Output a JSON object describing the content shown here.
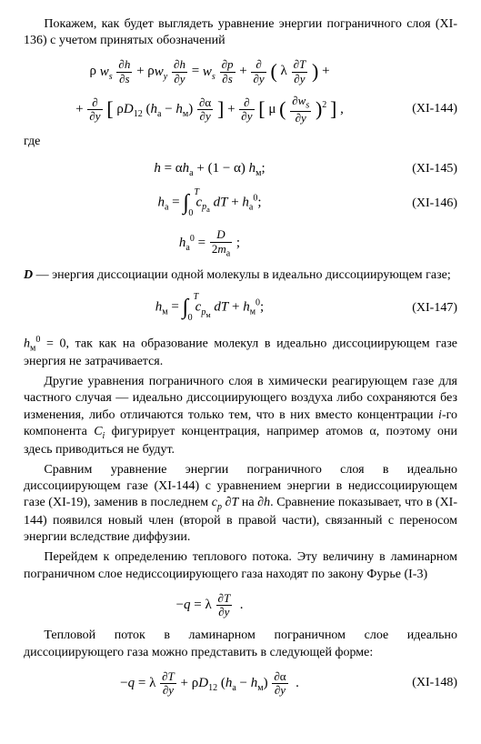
{
  "intro": {
    "p1": "Покажем, как будет выглядеть уравнение энергии пограничного слоя (XI-136) с учетом принятых обозначений"
  },
  "eq144": {
    "line1_html": "ρ <span class='it'>w<span class='sub'>s</span></span> <span class='frac'><span class='num'>∂<span class='it'>h</span></span><span class='den'>∂<span class='it'>s</span></span></span> + ρ<span class='it'>w<span class='sub'>y</span></span> <span class='frac'><span class='num'>∂<span class='it'>h</span></span><span class='den'>∂<span class='it'>y</span></span></span> = <span class='it'>w<span class='sub'>s</span></span> <span class='frac'><span class='num'>∂<span class='it'>p</span></span><span class='den'>∂<span class='it'>s</span></span></span> + <span class='frac'><span class='num'>∂</span><span class='den'>∂<span class='it'>y</span></span></span> <span class='big'>(</span> λ <span class='frac'><span class='num'>∂<span class='it'>T</span></span><span class='den'>∂<span class='it'>y</span></span></span> <span class='big'>)</span> +",
    "line2_html": "+ <span class='frac'><span class='num'>∂</span><span class='den'>∂<span class='it'>y</span></span></span> <span class='big'>[</span> ρ<span class='it'>D</span><span class='sub'>12</span> (<span class='it'>h</span><span class='sub'>а</span> − <span class='it'>h</span><span class='sub'>м</span>) <span class='frac'><span class='num'>∂α</span><span class='den'>∂<span class='it'>y</span></span></span> <span class='big'>]</span> + <span class='frac'><span class='num'>∂</span><span class='den'>∂<span class='it'>y</span></span></span> <span class='big'>[</span> μ <span class='big'>(</span> <span class='frac'><span class='num'>∂<span class='it'>w<span class=\"sub\">s</span></span></span><span class='den'>∂<span class='it'>y</span></span></span> <span class='big'>)</span><span class='sup'>2</span> <span class='big'>]</span> ,",
    "num": "(XI-144)"
  },
  "where_label": "где",
  "eq145": {
    "html": "<span class='it'>h</span> = α<span class='it'>h</span><span class='sub'>а</span> + (1 − α) <span class='it'>h</span><span class='sub'>м</span>;",
    "num": "(XI-145)"
  },
  "eq146": {
    "html": "<span class='it'>h</span><span class='sub'>а</span> = <span class='intwrap'><span class='int-top'><span class='it'>T</span></span><span class='intsym'>∫</span><span class='int-bot'>0</span></span> &nbsp;<span class='it'>c</span><span class='sub'><span class='it'>p</span><sub>а</sub></span> <span class='it'>dT</span> + <span class='it'>h</span><span class='sub'>а</span><span class='sup'>0</span>;",
    "num": "(XI-146)"
  },
  "eq_ha0": {
    "html": "<span class='it'>h</span><span class='sub'>а</span><span class='sup'>0</span> = <span class='frac'><span class='num'><span class='it'>D</span></span><span class='den'>2<span class='it'>m</span><span class='sub'>а</span></span></span> ;"
  },
  "D_def": {
    "lead": "D",
    "rest": " — энергия диссоциации одной молекулы в идеально диссоциирующем газе;"
  },
  "eq147": {
    "html": "<span class='it'>h</span><span class='sub'>м</span> = <span class='intwrap'><span class='int-top'><span class='it'>T</span></span><span class='intsym'>∫</span><span class='int-bot'>0</span></span> &nbsp;<span class='it'>c</span><span class='sub'><span class='it'>p</span><sub>м</sub></span> <span class='it'>dT</span> + <span class='it'>h</span><span class='sub'>м</span><span class='sup'>0</span>;",
    "num": "(XI-147)"
  },
  "hm0_para_html": "<span class='it'>h</span><span class='sub'>м</span><span class='sup'>0</span> = 0, так как на образование молекул в идеально диссоциирующем газе энергия не затрачивается.",
  "para_other_html": "Другие уравнения пограничного слоя в химически реагирующем газе для частного случая — идеально диссоциирующего воздуха либо сохраняются без изменения, либо отличаются только тем, что в них вместо концентрации <span class='it'>i</span>-го компонента <span class='it'>C<span class='sub'>i</span></span> фигурирует концентрация, например атомов α, поэтому они здесь приводиться не будут.",
  "para_compare_html": "Сравним уравнение энергии пограничного слоя в идеально диссоциирующем газе (XI-144) с уравнением энергии в недиссоциирующем газе (XI-19), заменив в последнем <span class='it'>c<span class='sub'>p</span></span> ∂<span class='it'>T</span> на ∂<span class='it'>h</span>. Сравнение показывает, что в (XI-144) появился новый член (второй в правой части), связанный с переносом энергии вследствие диффузии.",
  "para_flux": "Перейдем к определению теплового потока. Эту величину в ламинарном пограничном слое недиссоциирующего газа находят по закону Фурье (I-3)",
  "eq_q1": {
    "html": "−<span class='it'>q</span> = λ <span class='frac'><span class='num'>∂<span class='it'>T</span></span><span class='den'>∂<span class='it'>y</span></span></span> &nbsp;."
  },
  "para_heat2": "Тепловой поток в ламинарном пограничном слое идеально диссоциирующего газа можно представить в следующей форме:",
  "eq148": {
    "html": "−<span class='it'>q</span> = λ <span class='frac'><span class='num'>∂<span class='it'>T</span></span><span class='den'>∂<span class='it'>y</span></span></span> + ρ<span class='it'>D</span><span class='sub'>12</span> (<span class='it'>h</span><span class='sub'>а</span> − <span class='it'>h</span><span class='sub'>м</span>) <span class='frac'><span class='num'>∂α</span><span class='den'>∂<span class='it'>y</span></span></span> &nbsp;.",
    "num": "(XI-148)"
  }
}
